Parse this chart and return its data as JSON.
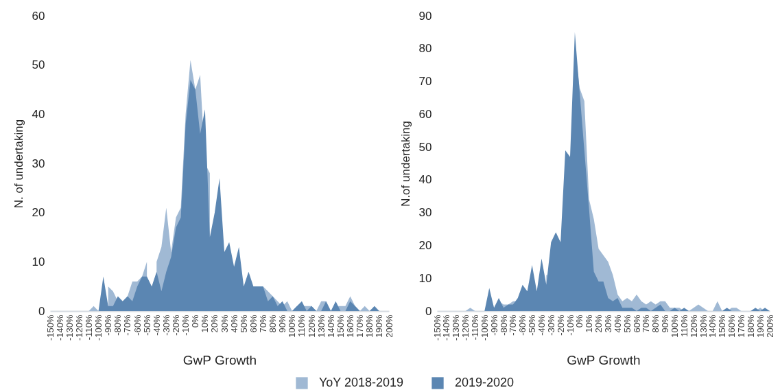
{
  "chart_data": [
    {
      "type": "area",
      "xlabel": "GwP Growth",
      "ylabel": "N. of undertaking",
      "legend": "bottom",
      "x": [
        -150,
        -145,
        -140,
        -135,
        -130,
        -125,
        -120,
        -115,
        -110,
        -105,
        -100,
        -95,
        -90,
        -85,
        -80,
        -75,
        -70,
        -65,
        -60,
        -55,
        -50,
        -45,
        -40,
        -35,
        -30,
        -25,
        -20,
        -15,
        -10,
        -5,
        0,
        5,
        10,
        15,
        20,
        25,
        30,
        35,
        40,
        45,
        50,
        55,
        60,
        65,
        70,
        75,
        80,
        85,
        90,
        95,
        100,
        105,
        110,
        115,
        120,
        125,
        130,
        135,
        140,
        145,
        150,
        155,
        160,
        165,
        170,
        175,
        180,
        185,
        190,
        195,
        200
      ],
      "xlim": [
        -150,
        200
      ],
      "xticks": [
        {
          "value": -150,
          "label": "-150%"
        },
        {
          "value": -140,
          "label": "-140%"
        },
        {
          "value": -130,
          "label": "-130%"
        },
        {
          "value": -120,
          "label": "-120%"
        },
        {
          "value": -110,
          "label": "-110%"
        },
        {
          "value": -100,
          "label": "-100%"
        },
        {
          "value": -90,
          "label": "-90%"
        },
        {
          "value": -80,
          "label": "-80%"
        },
        {
          "value": -70,
          "label": "-70%"
        },
        {
          "value": -60,
          "label": "-60%"
        },
        {
          "value": -50,
          "label": "-50%"
        },
        {
          "value": -40,
          "label": "-40%"
        },
        {
          "value": -30,
          "label": "-30%"
        },
        {
          "value": -20,
          "label": "-20%"
        },
        {
          "value": -10,
          "label": "-10%"
        },
        {
          "value": 0,
          "label": "0%"
        },
        {
          "value": 10,
          "label": "10%"
        },
        {
          "value": 20,
          "label": "20%"
        },
        {
          "value": 30,
          "label": "30%"
        },
        {
          "value": 40,
          "label": "40%"
        },
        {
          "value": 50,
          "label": "50%"
        },
        {
          "value": 60,
          "label": "60%"
        },
        {
          "value": 70,
          "label": "70%"
        },
        {
          "value": 80,
          "label": "80%"
        },
        {
          "value": 90,
          "label": "90%"
        },
        {
          "value": 100,
          "label": "100%"
        },
        {
          "value": 110,
          "label": "110%"
        },
        {
          "value": 120,
          "label": "120%"
        },
        {
          "value": 130,
          "label": "130%"
        },
        {
          "value": 140,
          "label": "140%"
        },
        {
          "value": 150,
          "label": "150%"
        },
        {
          "value": 160,
          "label": "160%"
        },
        {
          "value": 170,
          "label": "170%"
        },
        {
          "value": 180,
          "label": "180%"
        },
        {
          "value": 190,
          "label": "190%"
        },
        {
          "value": 200,
          "label": "200%"
        }
      ],
      "ylim": [
        0,
        60
      ],
      "yticks": [
        0,
        10,
        20,
        30,
        40,
        50,
        60
      ],
      "series": [
        {
          "name": "YoY 2018-2019",
          "color": "#a0b9d4",
          "values": [
            0,
            0,
            0,
            0,
            0,
            0,
            0,
            0,
            0,
            1,
            0,
            null,
            5,
            4,
            2,
            2,
            3,
            6,
            6,
            7,
            10,
            null,
            10,
            13,
            21,
            12,
            19,
            21,
            40,
            51,
            45,
            48,
            30,
            28,
            null,
            null,
            null,
            null,
            null,
            null,
            null,
            null,
            5,
            5,
            5,
            4,
            3,
            2,
            1,
            2,
            0,
            1,
            1,
            1,
            1,
            0,
            2,
            2,
            0,
            1,
            1,
            1,
            3,
            1,
            0,
            1,
            0,
            0,
            0,
            0,
            0
          ]
        },
        {
          "name": "2019-2020",
          "color": "#5b86b2",
          "values": [
            0,
            0,
            0,
            0,
            0,
            0,
            0,
            0,
            0,
            0,
            0,
            7,
            1,
            1,
            3,
            2,
            3,
            2,
            5,
            7,
            7,
            5,
            8,
            4,
            8,
            11,
            17,
            19,
            38,
            47,
            45,
            36,
            41,
            15,
            20,
            27,
            12,
            14,
            9,
            13,
            5,
            8,
            5,
            5,
            5,
            2,
            3,
            1,
            2,
            0,
            0,
            1,
            2,
            0,
            1,
            0,
            0,
            2,
            0,
            2,
            0,
            0,
            2,
            1,
            0,
            0,
            0,
            1,
            0,
            0,
            0
          ]
        }
      ]
    },
    {
      "type": "area",
      "xlabel": "GwP Growth",
      "ylabel": "N.of undertaking",
      "legend": "bottom",
      "x": [
        -150,
        -145,
        -140,
        -135,
        -130,
        -125,
        -120,
        -115,
        -110,
        -105,
        -100,
        -95,
        -90,
        -85,
        -80,
        -75,
        -70,
        -65,
        -60,
        -55,
        -50,
        -45,
        -40,
        -35,
        -30,
        -25,
        -20,
        -15,
        -10,
        -5,
        0,
        5,
        10,
        15,
        20,
        25,
        30,
        35,
        40,
        45,
        50,
        55,
        60,
        65,
        70,
        75,
        80,
        85,
        90,
        95,
        100,
        105,
        110,
        115,
        120,
        125,
        130,
        135,
        140,
        145,
        150,
        155,
        160,
        165,
        170,
        175,
        180,
        185,
        190,
        195,
        200
      ],
      "xlim": [
        -150,
        200
      ],
      "xticks": [
        {
          "value": -150,
          "label": "-150%"
        },
        {
          "value": -140,
          "label": "-140%"
        },
        {
          "value": -130,
          "label": "-130%"
        },
        {
          "value": -120,
          "label": "-120%"
        },
        {
          "value": -110,
          "label": "-110%"
        },
        {
          "value": -100,
          "label": "-100%"
        },
        {
          "value": -90,
          "label": "-90%"
        },
        {
          "value": -80,
          "label": "-80%"
        },
        {
          "value": -70,
          "label": "-70%"
        },
        {
          "value": -60,
          "label": "-60%"
        },
        {
          "value": -50,
          "label": "-50%"
        },
        {
          "value": -40,
          "label": "-40%"
        },
        {
          "value": -30,
          "label": "-30%"
        },
        {
          "value": -20,
          "label": "-20%"
        },
        {
          "value": -10,
          "label": "-10%"
        },
        {
          "value": 0,
          "label": "0%"
        },
        {
          "value": 10,
          "label": "10%"
        },
        {
          "value": 20,
          "label": "20%"
        },
        {
          "value": 30,
          "label": "30%"
        },
        {
          "value": 40,
          "label": "40%"
        },
        {
          "value": 50,
          "label": "50%"
        },
        {
          "value": 60,
          "label": "60%"
        },
        {
          "value": 70,
          "label": "70%"
        },
        {
          "value": 80,
          "label": "80%"
        },
        {
          "value": 90,
          "label": "90%"
        },
        {
          "value": 100,
          "label": "100%"
        },
        {
          "value": 110,
          "label": "110%"
        },
        {
          "value": 120,
          "label": "120%"
        },
        {
          "value": 130,
          "label": "130%"
        },
        {
          "value": 140,
          "label": "140%"
        },
        {
          "value": 150,
          "label": "150%"
        },
        {
          "value": 160,
          "label": "160%"
        },
        {
          "value": 170,
          "label": "170%"
        },
        {
          "value": 180,
          "label": "180%"
        },
        {
          "value": 190,
          "label": "190%"
        },
        {
          "value": 200,
          "label": "200%"
        }
      ],
      "ylim": [
        0,
        90
      ],
      "yticks": [
        0,
        10,
        20,
        30,
        40,
        50,
        60,
        70,
        80,
        90
      ],
      "series": [
        {
          "name": "YoY 2018-2019",
          "color": "#a0b9d4",
          "x": [
            -150,
            -145,
            -140,
            -135,
            -130,
            -125,
            -120,
            -115,
            -110,
            -105,
            -100,
            -95,
            -90,
            -85,
            -80,
            -75,
            -70,
            -65,
            -60,
            -55,
            -50,
            -45,
            -40,
            -35,
            -34,
            -30,
            -25,
            -20,
            -15,
            -10,
            -5,
            0,
            5,
            10,
            15,
            20,
            25,
            30,
            35,
            40,
            45,
            50,
            55,
            60,
            65,
            70,
            75,
            80,
            85,
            90,
            95,
            100,
            105,
            110,
            115,
            120,
            125,
            130,
            135,
            140,
            145,
            150,
            155,
            160,
            165,
            170,
            175,
            180,
            185,
            190,
            195,
            200
          ],
          "values": [
            0,
            0,
            0,
            0,
            0,
            0,
            0,
            1,
            0,
            0,
            0,
            0,
            null,
            3,
            2,
            2,
            3,
            3,
            null,
            null,
            null,
            null,
            null,
            11,
            11,
            null,
            null,
            null,
            null,
            null,
            80,
            68,
            64,
            34,
            28,
            19,
            17,
            15,
            11,
            5,
            3,
            4,
            3,
            5,
            3,
            2,
            3,
            2,
            3,
            3,
            1,
            1,
            1,
            0,
            0,
            1,
            2,
            1,
            0,
            0,
            3,
            0,
            0,
            1,
            1,
            0,
            0,
            0,
            0,
            1,
            0,
            0
          ]
        },
        {
          "name": "2019-2020",
          "color": "#5b86b2",
          "values": [
            0,
            0,
            0,
            0,
            0,
            0,
            0,
            0,
            0,
            0,
            0,
            7,
            1,
            4,
            1,
            2,
            2,
            4,
            8,
            6,
            14,
            6,
            16,
            8,
            21,
            24,
            21,
            49,
            47,
            85,
            67,
            49,
            31,
            12,
            9,
            9,
            4,
            3,
            4,
            1,
            1,
            1,
            0,
            1,
            1,
            0,
            1,
            2,
            0,
            0,
            1,
            0,
            1,
            0,
            0,
            0,
            0,
            0,
            0,
            0,
            0,
            1,
            0,
            0,
            0,
            0,
            0,
            1,
            0,
            1,
            0
          ]
        }
      ]
    }
  ]
}
